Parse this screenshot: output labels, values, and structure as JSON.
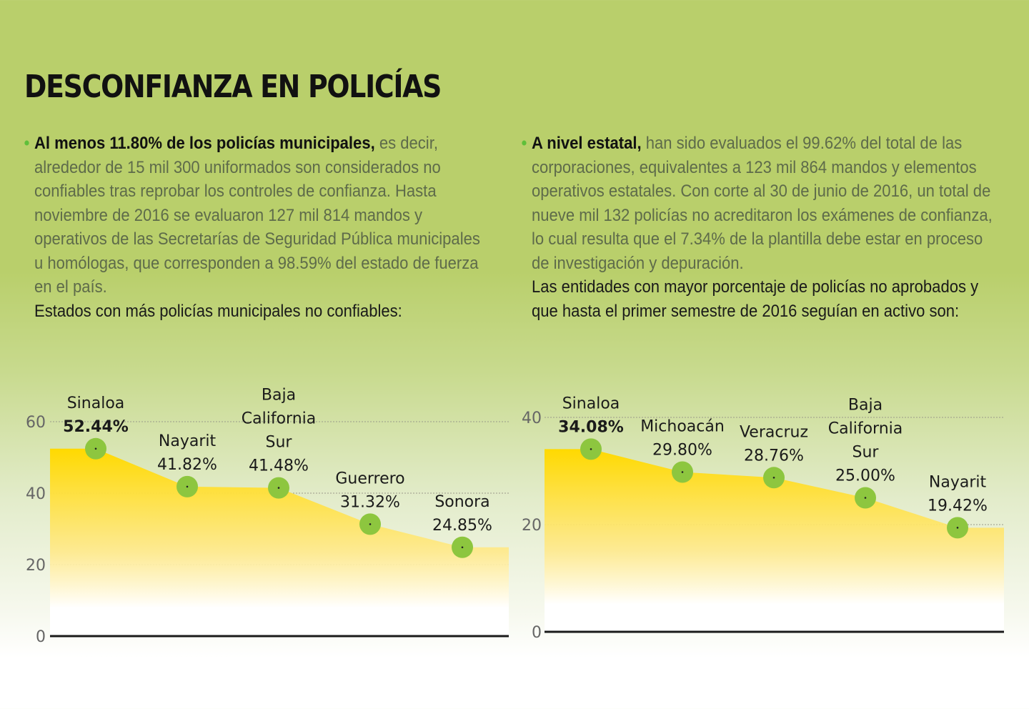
{
  "title": "DESCONFIANZA EN POLICÍAS",
  "colors": {
    "background": "#b9cf6b",
    "area_fill": "#ffd900",
    "marker": "#8dc63f",
    "bullet": "#5fbf3a"
  },
  "left": {
    "bullet": "•",
    "lead": "Al menos 11.80% de los policías municipales,",
    "body": " es decir, alrededor de 15 mil 300 uniformados son considerados no confiables tras reprobar los controles de confianza. Hasta noviembre de 2016 se evaluaron 127 mil 814 mandos y operativos de las Secretarías de Seguridad Pública municipales u homólogas, que corresponden a 98.59% del estado de fuerza en el país.",
    "subtitle": "Estados con más policías municipales no confiables:"
  },
  "right": {
    "bullet": "•",
    "lead": "A nivel estatal,",
    "body": " han sido evaluados el 99.62% del total de las corporaciones, equivalentes a 123 mil 864 mandos y elementos operativos estatales. Con corte al 30 de junio de 2016, un total de nueve mil 132 policías no acreditaron los exámenes de confianza, lo cual resulta que el 7.34% de la plantilla debe estar en proceso de investigación y depuración.",
    "subtitle": "Las entidades con mayor porcentaje de policías no aprobados y que hasta el primer semestre de 2016 seguían en activo son:"
  },
  "chart_data": [
    {
      "type": "area",
      "title": "Estados con más policías municipales no confiables",
      "categories": [
        "Sinaloa",
        "Nayarit",
        "Baja California Sur",
        "Guerrero",
        "Sonora"
      ],
      "label_lines": [
        [
          "Sinaloa"
        ],
        [
          "Nayarit"
        ],
        [
          "Baja",
          "California",
          "Sur"
        ],
        [
          "Guerrero"
        ],
        [
          "Sonora"
        ]
      ],
      "values": [
        52.44,
        41.82,
        41.48,
        31.32,
        24.85
      ],
      "value_labels": [
        "52.44%",
        "41.82%",
        "41.48%",
        "31.32%",
        "24.85%"
      ],
      "highlight_index": 0,
      "ylim": [
        0,
        60
      ],
      "yticks": [
        0,
        20,
        40,
        60
      ],
      "xlabel": "",
      "ylabel": "",
      "grid": true
    },
    {
      "type": "area",
      "title": "Entidades con mayor porcentaje de policías estatales no aprobados",
      "categories": [
        "Sinaloa",
        "Michoacán",
        "Veracruz",
        "Baja California Sur",
        "Nayarit"
      ],
      "label_lines": [
        [
          "Sinaloa"
        ],
        [
          "Michoacán"
        ],
        [
          "Veracruz"
        ],
        [
          "Baja",
          "California",
          "Sur"
        ],
        [
          "Nayarit"
        ]
      ],
      "values": [
        34.08,
        29.8,
        28.76,
        25.0,
        19.42
      ],
      "value_labels": [
        "34.08%",
        "29.80%",
        "28.76%",
        "25.00%",
        "19.42%"
      ],
      "highlight_index": 0,
      "ylim": [
        0,
        40
      ],
      "yticks": [
        0,
        20,
        40
      ],
      "xlabel": "",
      "ylabel": "",
      "grid": true
    }
  ]
}
